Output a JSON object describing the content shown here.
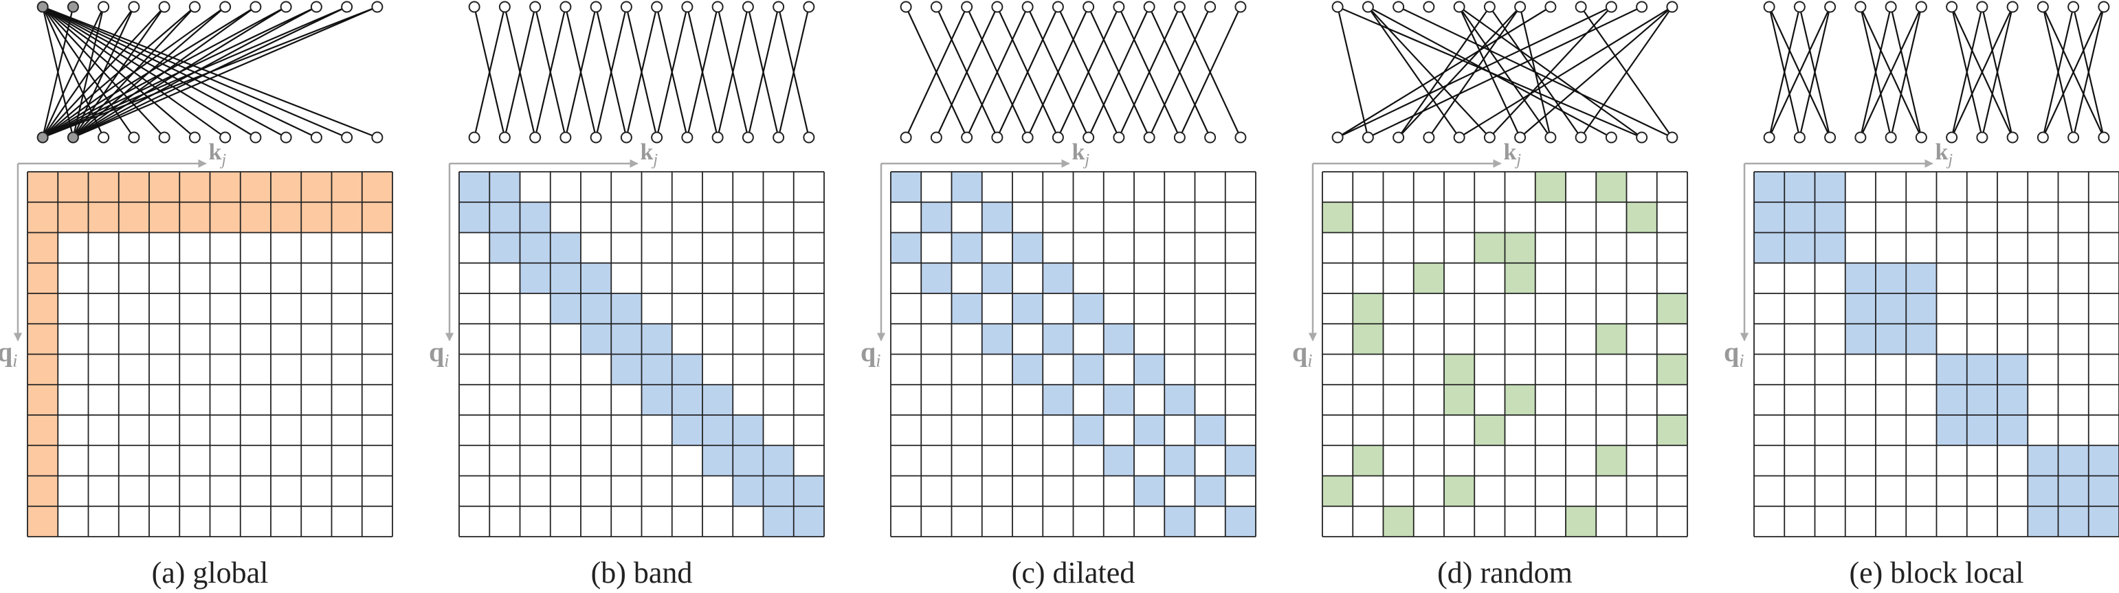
{
  "figure": {
    "grid_size": 12,
    "colors": {
      "global": "#fcc9a1",
      "local": "#bcd3ee",
      "random": "#c7deb8",
      "grid_line": "#222222",
      "axis": "#aaaaaa",
      "node_fill": "#ffffff",
      "node_global": "#999999"
    },
    "axis_labels": {
      "key": "k",
      "key_sub": "j",
      "query": "q",
      "query_sub": "i"
    },
    "panels": [
      {
        "id": "global",
        "caption": "(a)  global",
        "color": "global",
        "cells": [
          [
            0,
            0
          ],
          [
            0,
            1
          ],
          [
            0,
            2
          ],
          [
            0,
            3
          ],
          [
            0,
            4
          ],
          [
            0,
            5
          ],
          [
            0,
            6
          ],
          [
            0,
            7
          ],
          [
            0,
            8
          ],
          [
            0,
            9
          ],
          [
            0,
            10
          ],
          [
            0,
            11
          ],
          [
            1,
            0
          ],
          [
            1,
            1
          ],
          [
            1,
            2
          ],
          [
            1,
            3
          ],
          [
            1,
            4
          ],
          [
            1,
            5
          ],
          [
            1,
            6
          ],
          [
            1,
            7
          ],
          [
            1,
            8
          ],
          [
            1,
            9
          ],
          [
            1,
            10
          ],
          [
            1,
            11
          ],
          [
            2,
            0
          ],
          [
            3,
            0
          ],
          [
            4,
            0
          ],
          [
            5,
            0
          ],
          [
            6,
            0
          ],
          [
            7,
            0
          ],
          [
            8,
            0
          ],
          [
            9,
            0
          ],
          [
            10,
            0
          ],
          [
            11,
            0
          ]
        ],
        "global_nodes": [
          0,
          1
        ]
      },
      {
        "id": "band",
        "caption": "(b)  band",
        "color": "local",
        "cells": [
          [
            0,
            0
          ],
          [
            0,
            1
          ],
          [
            1,
            0
          ],
          [
            1,
            1
          ],
          [
            1,
            2
          ],
          [
            2,
            1
          ],
          [
            2,
            2
          ],
          [
            2,
            3
          ],
          [
            3,
            2
          ],
          [
            3,
            3
          ],
          [
            3,
            4
          ],
          [
            4,
            3
          ],
          [
            4,
            4
          ],
          [
            4,
            5
          ],
          [
            5,
            4
          ],
          [
            5,
            5
          ],
          [
            5,
            6
          ],
          [
            6,
            5
          ],
          [
            6,
            6
          ],
          [
            6,
            7
          ],
          [
            7,
            6
          ],
          [
            7,
            7
          ],
          [
            7,
            8
          ],
          [
            8,
            7
          ],
          [
            8,
            8
          ],
          [
            8,
            9
          ],
          [
            9,
            8
          ],
          [
            9,
            9
          ],
          [
            9,
            10
          ],
          [
            10,
            9
          ],
          [
            10,
            10
          ],
          [
            10,
            11
          ],
          [
            11,
            10
          ],
          [
            11,
            11
          ]
        ]
      },
      {
        "id": "dilated",
        "caption": "(c)  dilated",
        "color": "local",
        "cells": [
          [
            0,
            0
          ],
          [
            0,
            2
          ],
          [
            1,
            1
          ],
          [
            1,
            3
          ],
          [
            2,
            0
          ],
          [
            2,
            2
          ],
          [
            2,
            4
          ],
          [
            3,
            1
          ],
          [
            3,
            3
          ],
          [
            3,
            5
          ],
          [
            4,
            2
          ],
          [
            4,
            4
          ],
          [
            4,
            6
          ],
          [
            5,
            3
          ],
          [
            5,
            5
          ],
          [
            5,
            7
          ],
          [
            6,
            4
          ],
          [
            6,
            6
          ],
          [
            6,
            8
          ],
          [
            7,
            5
          ],
          [
            7,
            7
          ],
          [
            7,
            9
          ],
          [
            8,
            6
          ],
          [
            8,
            8
          ],
          [
            8,
            10
          ],
          [
            9,
            7
          ],
          [
            9,
            9
          ],
          [
            9,
            11
          ],
          [
            10,
            8
          ],
          [
            10,
            10
          ],
          [
            11,
            9
          ],
          [
            11,
            11
          ]
        ]
      },
      {
        "id": "random",
        "caption": "(d)  random",
        "color": "random",
        "cells": [
          [
            0,
            7
          ],
          [
            0,
            9
          ],
          [
            1,
            0
          ],
          [
            1,
            10
          ],
          [
            2,
            5
          ],
          [
            2,
            6
          ],
          [
            3,
            3
          ],
          [
            3,
            6
          ],
          [
            4,
            1
          ],
          [
            4,
            11
          ],
          [
            5,
            1
          ],
          [
            5,
            9
          ],
          [
            6,
            4
          ],
          [
            6,
            11
          ],
          [
            7,
            4
          ],
          [
            7,
            6
          ],
          [
            8,
            5
          ],
          [
            8,
            11
          ],
          [
            9,
            1
          ],
          [
            9,
            9
          ],
          [
            10,
            0
          ],
          [
            10,
            4
          ],
          [
            11,
            2
          ],
          [
            11,
            8
          ]
        ]
      },
      {
        "id": "block-local",
        "caption": "(e)  block local",
        "color": "local",
        "cells": [
          [
            0,
            0
          ],
          [
            0,
            1
          ],
          [
            0,
            2
          ],
          [
            1,
            0
          ],
          [
            1,
            1
          ],
          [
            1,
            2
          ],
          [
            2,
            0
          ],
          [
            2,
            1
          ],
          [
            2,
            2
          ],
          [
            3,
            3
          ],
          [
            3,
            4
          ],
          [
            3,
            5
          ],
          [
            4,
            3
          ],
          [
            4,
            4
          ],
          [
            4,
            5
          ],
          [
            5,
            3
          ],
          [
            5,
            4
          ],
          [
            5,
            5
          ],
          [
            6,
            6
          ],
          [
            6,
            7
          ],
          [
            6,
            8
          ],
          [
            7,
            6
          ],
          [
            7,
            7
          ],
          [
            7,
            8
          ],
          [
            8,
            6
          ],
          [
            8,
            7
          ],
          [
            8,
            8
          ],
          [
            9,
            9
          ],
          [
            9,
            10
          ],
          [
            9,
            11
          ],
          [
            10,
            9
          ],
          [
            10,
            10
          ],
          [
            10,
            11
          ],
          [
            11,
            9
          ],
          [
            11,
            10
          ],
          [
            11,
            11
          ]
        ]
      }
    ]
  }
}
